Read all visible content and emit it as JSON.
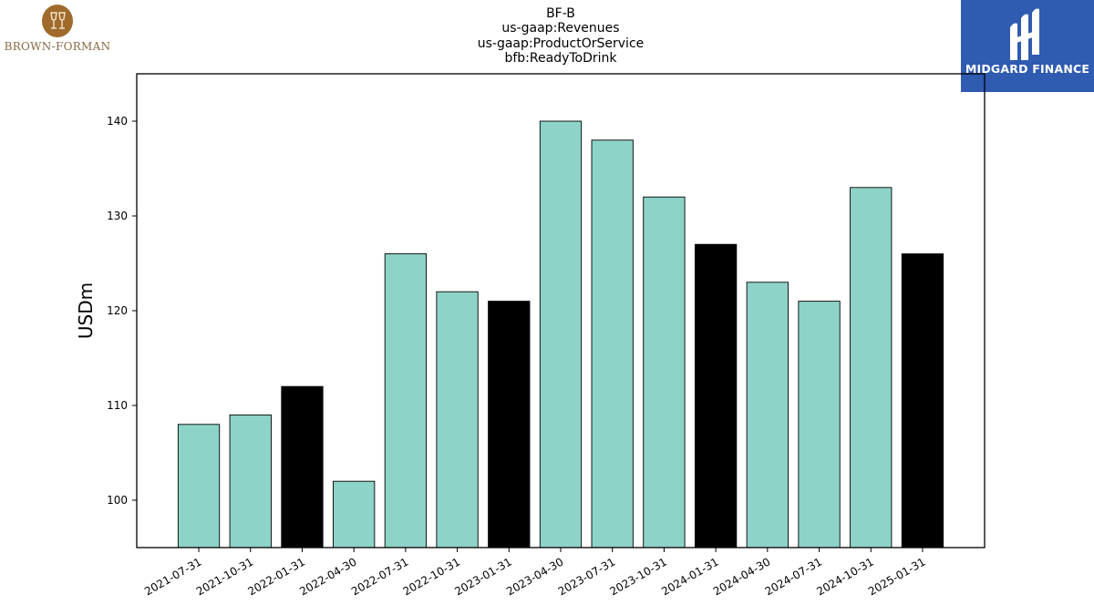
{
  "title_lines": [
    "BF-B",
    "us-gaap:Revenues",
    "us-gaap:ProductOrService",
    "bfb:ReadyToDrink"
  ],
  "logos": {
    "left": {
      "text": "BROWN-FORMAN",
      "color": "#a06a2a"
    },
    "right": {
      "text": "MIDGARD FINANCE",
      "color": "#2f5bb0"
    }
  },
  "chart_data": {
    "type": "bar",
    "title": "BF-B\nus-gaap:Revenues\nus-gaap:ProductOrService\nbfb:ReadyToDrink",
    "xlabel": "",
    "ylabel": "USDm",
    "ylim": [
      95,
      145
    ],
    "yticks": [
      100,
      110,
      120,
      130,
      140
    ],
    "grid": false,
    "categories": [
      "2021-07-31",
      "2021-10-31",
      "2022-01-31",
      "2022-04-30",
      "2022-07-31",
      "2022-10-31",
      "2023-01-31",
      "2023-04-30",
      "2023-07-31",
      "2023-10-31",
      "2024-01-31",
      "2024-04-30",
      "2024-07-31",
      "2024-10-31",
      "2025-01-31"
    ],
    "values": [
      108,
      109,
      112,
      102,
      126,
      122,
      121,
      140,
      138,
      132,
      127,
      123,
      121,
      133,
      126
    ],
    "bar_colors": [
      "#8dd3c7",
      "#8dd3c7",
      "#000000",
      "#8dd3c7",
      "#8dd3c7",
      "#8dd3c7",
      "#000000",
      "#8dd3c7",
      "#8dd3c7",
      "#8dd3c7",
      "#000000",
      "#8dd3c7",
      "#8dd3c7",
      "#8dd3c7",
      "#000000"
    ]
  }
}
